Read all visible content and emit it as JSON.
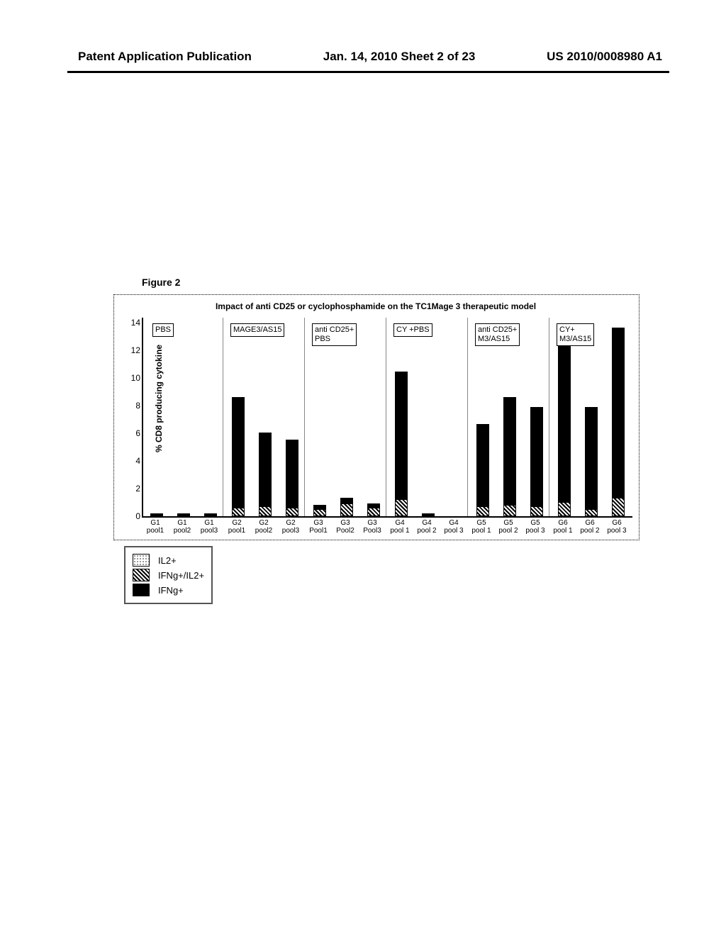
{
  "header": {
    "left": "Patent Application Publication",
    "center": "Jan. 14, 2010  Sheet 2 of 23",
    "right": "US 2010/0008980 A1"
  },
  "figure_label": "Figure 2",
  "chart": {
    "type": "stacked-bar",
    "title": "Impact of anti CD25 or cyclophosphamide on the TC1Mage 3 therapeutic model",
    "ylabel": "% CD8 producing cytokine",
    "ylim": [
      0,
      14
    ],
    "ytick_step": 2,
    "yticks": [
      "0",
      "2",
      "4",
      "6",
      "8",
      "10",
      "12",
      "14"
    ],
    "colors": {
      "ifng": "#000000",
      "mix_pattern": "diagonal-hatch",
      "il2_pattern": "dots",
      "border": "#000000",
      "bg": "#ffffff"
    },
    "group_labels": [
      "PBS",
      "MAGE3/AS15",
      "anti CD25+\nPBS",
      "CY +PBS",
      "anti CD25+\nM3/AS15",
      "CY+\nM3/AS15"
    ],
    "x_labels": [
      "G1\npool1",
      "G1\npool2",
      "G1\npool3",
      "G2\npool1",
      "G2\npool2",
      "G2\npool3",
      "G3\nPool1",
      "G3\nPool2",
      "G3\nPool3",
      "G4\npool 1",
      "G4\npool 2",
      "G4\npool 3",
      "G5\npool 1",
      "G5\npool 2",
      "G5\npool 3",
      "G6\npool 1",
      "G6\npool 2",
      "G6\npool 3"
    ],
    "bars": [
      {
        "ifng": 0.1,
        "mix": 0.1,
        "il2": 0.0
      },
      {
        "ifng": 0.1,
        "mix": 0.1,
        "il2": 0.0
      },
      {
        "ifng": 0.1,
        "mix": 0.1,
        "il2": 0.0
      },
      {
        "ifng": 7.8,
        "mix": 0.6,
        "il2": 0.0
      },
      {
        "ifng": 5.2,
        "mix": 0.7,
        "il2": 0.0
      },
      {
        "ifng": 4.8,
        "mix": 0.6,
        "il2": 0.0
      },
      {
        "ifng": 0.3,
        "mix": 0.5,
        "il2": 0.0
      },
      {
        "ifng": 0.4,
        "mix": 0.9,
        "il2": 0.0
      },
      {
        "ifng": 0.3,
        "mix": 0.6,
        "il2": 0.0
      },
      {
        "ifng": 9.0,
        "mix": 1.2,
        "il2": 0.0
      },
      {
        "ifng": 0.1,
        "mix": 0.1,
        "il2": 0.0
      },
      {
        "ifng": 0.0,
        "mix": 0.0,
        "il2": 0.0
      },
      {
        "ifng": 5.8,
        "mix": 0.7,
        "il2": 0.0
      },
      {
        "ifng": 7.6,
        "mix": 0.8,
        "il2": 0.0
      },
      {
        "ifng": 7.0,
        "mix": 0.7,
        "il2": 0.0
      },
      {
        "ifng": 11.0,
        "mix": 1.0,
        "il2": 0.0
      },
      {
        "ifng": 7.2,
        "mix": 0.5,
        "il2": 0.0
      },
      {
        "ifng": 12.0,
        "mix": 1.3,
        "il2": 0.0
      }
    ],
    "legend": [
      {
        "pattern": "il2",
        "label": "IL2+"
      },
      {
        "pattern": "mix",
        "label": "IFNg+/IL2+"
      },
      {
        "pattern": "ifng",
        "label": "IFNg+"
      }
    ]
  }
}
